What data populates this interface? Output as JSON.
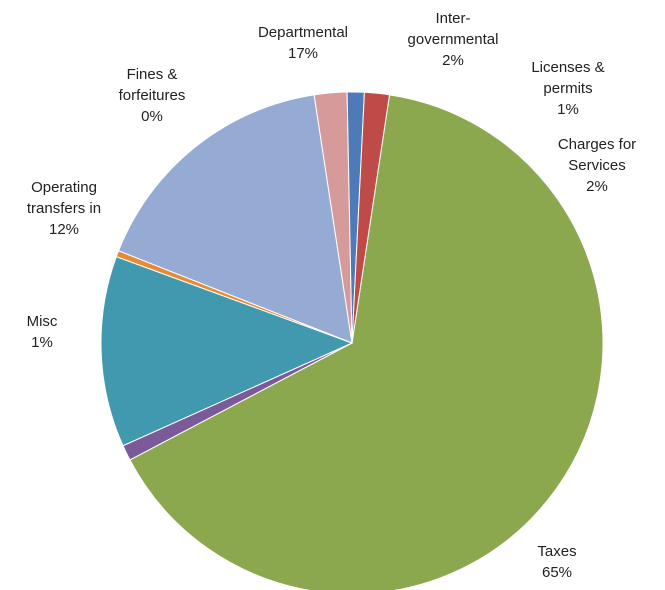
{
  "chart_data": {
    "type": "pie",
    "title": "",
    "legend": "none",
    "start_angle_deg": 8.6,
    "slices": [
      {
        "label_lines": [
          "Taxes"
        ],
        "pct_label": "65%",
        "value": 64.9,
        "color": "#8BA84E"
      },
      {
        "label_lines": [
          "Misc"
        ],
        "pct_label": "1%",
        "value": 1.0,
        "color": "#7A5A98"
      },
      {
        "label_lines": [
          "Operating",
          "transfers in"
        ],
        "pct_label": "12%",
        "value": 12.3,
        "color": "#4199B0"
      },
      {
        "label_lines": [
          "Fines &",
          "forfeitures"
        ],
        "pct_label": "0%",
        "value": 0.4,
        "color": "#E68A33"
      },
      {
        "label_lines": [
          "Departmental"
        ],
        "pct_label": "17%",
        "value": 16.6,
        "color": "#95ABD4"
      },
      {
        "label_lines": [
          "Inter-",
          "governmental"
        ],
        "pct_label": "2%",
        "value": 2.1,
        "color": "#D79A9A"
      },
      {
        "label_lines": [
          "Licenses &",
          "permits"
        ],
        "pct_label": "1%",
        "value": 1.1,
        "color": "#4F7AB8"
      },
      {
        "label_lines": [
          "Charges for",
          "Services"
        ],
        "pct_label": "2%",
        "value": 1.6,
        "color": "#BE4B48"
      }
    ]
  }
}
